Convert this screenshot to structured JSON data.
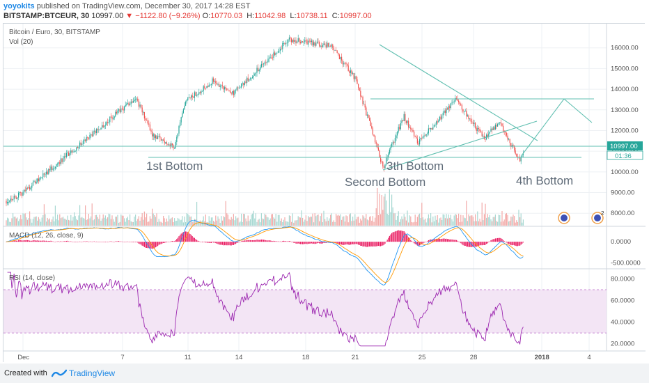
{
  "header": {
    "author": "yoyokits",
    "published": "published on TradingView.com, December 30, 2017 14:28 EST",
    "symbol": "BITSTAMP:BTCEUR, 30",
    "last": "10997.00",
    "change": "▼ −1122.80 (−9.26%)",
    "o_label": "O:",
    "o_value": "10770.03",
    "h_label": "H:",
    "h_value": "11042.98",
    "l_label": "L:",
    "l_value": "10738.11",
    "c_label": "C:",
    "c_value": "10997.00"
  },
  "panes": {
    "main_title": "Bitcoin / Euro, 30, BITSTAMP",
    "vol_title": "Vol (20)",
    "macd_title": "MACD (12, 26, close, 9)",
    "rsi_title": "RSI (14, close)"
  },
  "price_badge": {
    "price": "10997.00",
    "countdown": "01:36"
  },
  "annotations": [
    "1st Bottom",
    "3th Bottom",
    "Second Bottom",
    "4th Bottom"
  ],
  "footer": {
    "created": "Created with",
    "brand": "TradingView"
  },
  "colors": {
    "up": "#26a69a",
    "down": "#ef5350",
    "pattern": "#5fbfb0",
    "macd": "#2196f3",
    "signal": "#ff9800",
    "hist": "#e91e63",
    "rsi": "#9c27b0",
    "rsi_band": "#f3e5f5"
  },
  "chart_data": [
    {
      "type": "candlestick",
      "title": "Bitcoin / Euro, 30, BITSTAMP",
      "x_ticks": [
        "Dec",
        "7",
        "11",
        "14",
        "18",
        "21",
        "25",
        "28",
        "2018",
        "4"
      ],
      "y_ticks": [
        "8000.00",
        "9000.00",
        "10000.00",
        "11000.00",
        "12000.00",
        "13000.00",
        "14000.00",
        "15000.00",
        "16000.00"
      ],
      "ylim": [
        7400,
        16900
      ],
      "last_price": 10997.0,
      "close_path": [
        [
          "Dec",
          8600
        ],
        [
          "Dec",
          8900
        ],
        [
          "7",
          13600
        ],
        [
          "7",
          11800
        ],
        [
          "11",
          11200
        ],
        [
          "11",
          13400
        ],
        [
          "14",
          14400
        ],
        [
          "14",
          13800
        ],
        [
          "18",
          16400
        ],
        [
          "18",
          16100
        ],
        [
          "21",
          14500
        ],
        [
          "21",
          12200
        ],
        [
          "21",
          10200
        ],
        [
          "25",
          12700
        ],
        [
          "25",
          11400
        ],
        [
          "28",
          13500
        ],
        [
          "28",
          11600
        ],
        [
          "28",
          12400
        ],
        [
          "28",
          10500
        ],
        [
          "28",
          10997
        ]
      ],
      "support_levels": [
        10500,
        11000,
        13300
      ],
      "annotations": [
        "1st Bottom",
        "3th Bottom",
        "Second Bottom",
        "4th Bottom"
      ]
    },
    {
      "type": "bar",
      "title": "Vol (20)",
      "note": "volume histogram beneath price"
    },
    {
      "type": "line",
      "title": "MACD (12, 26, close, 9)",
      "y_ticks": [
        "0.0000",
        "-500.0000"
      ],
      "ylim": [
        -620,
        330
      ]
    },
    {
      "type": "line",
      "title": "RSI (14, close)",
      "y_ticks": [
        "80.0000",
        "60.0000",
        "40.0000",
        "20.0000"
      ],
      "ylim": [
        14,
        88
      ],
      "band": [
        30,
        70
      ]
    }
  ]
}
